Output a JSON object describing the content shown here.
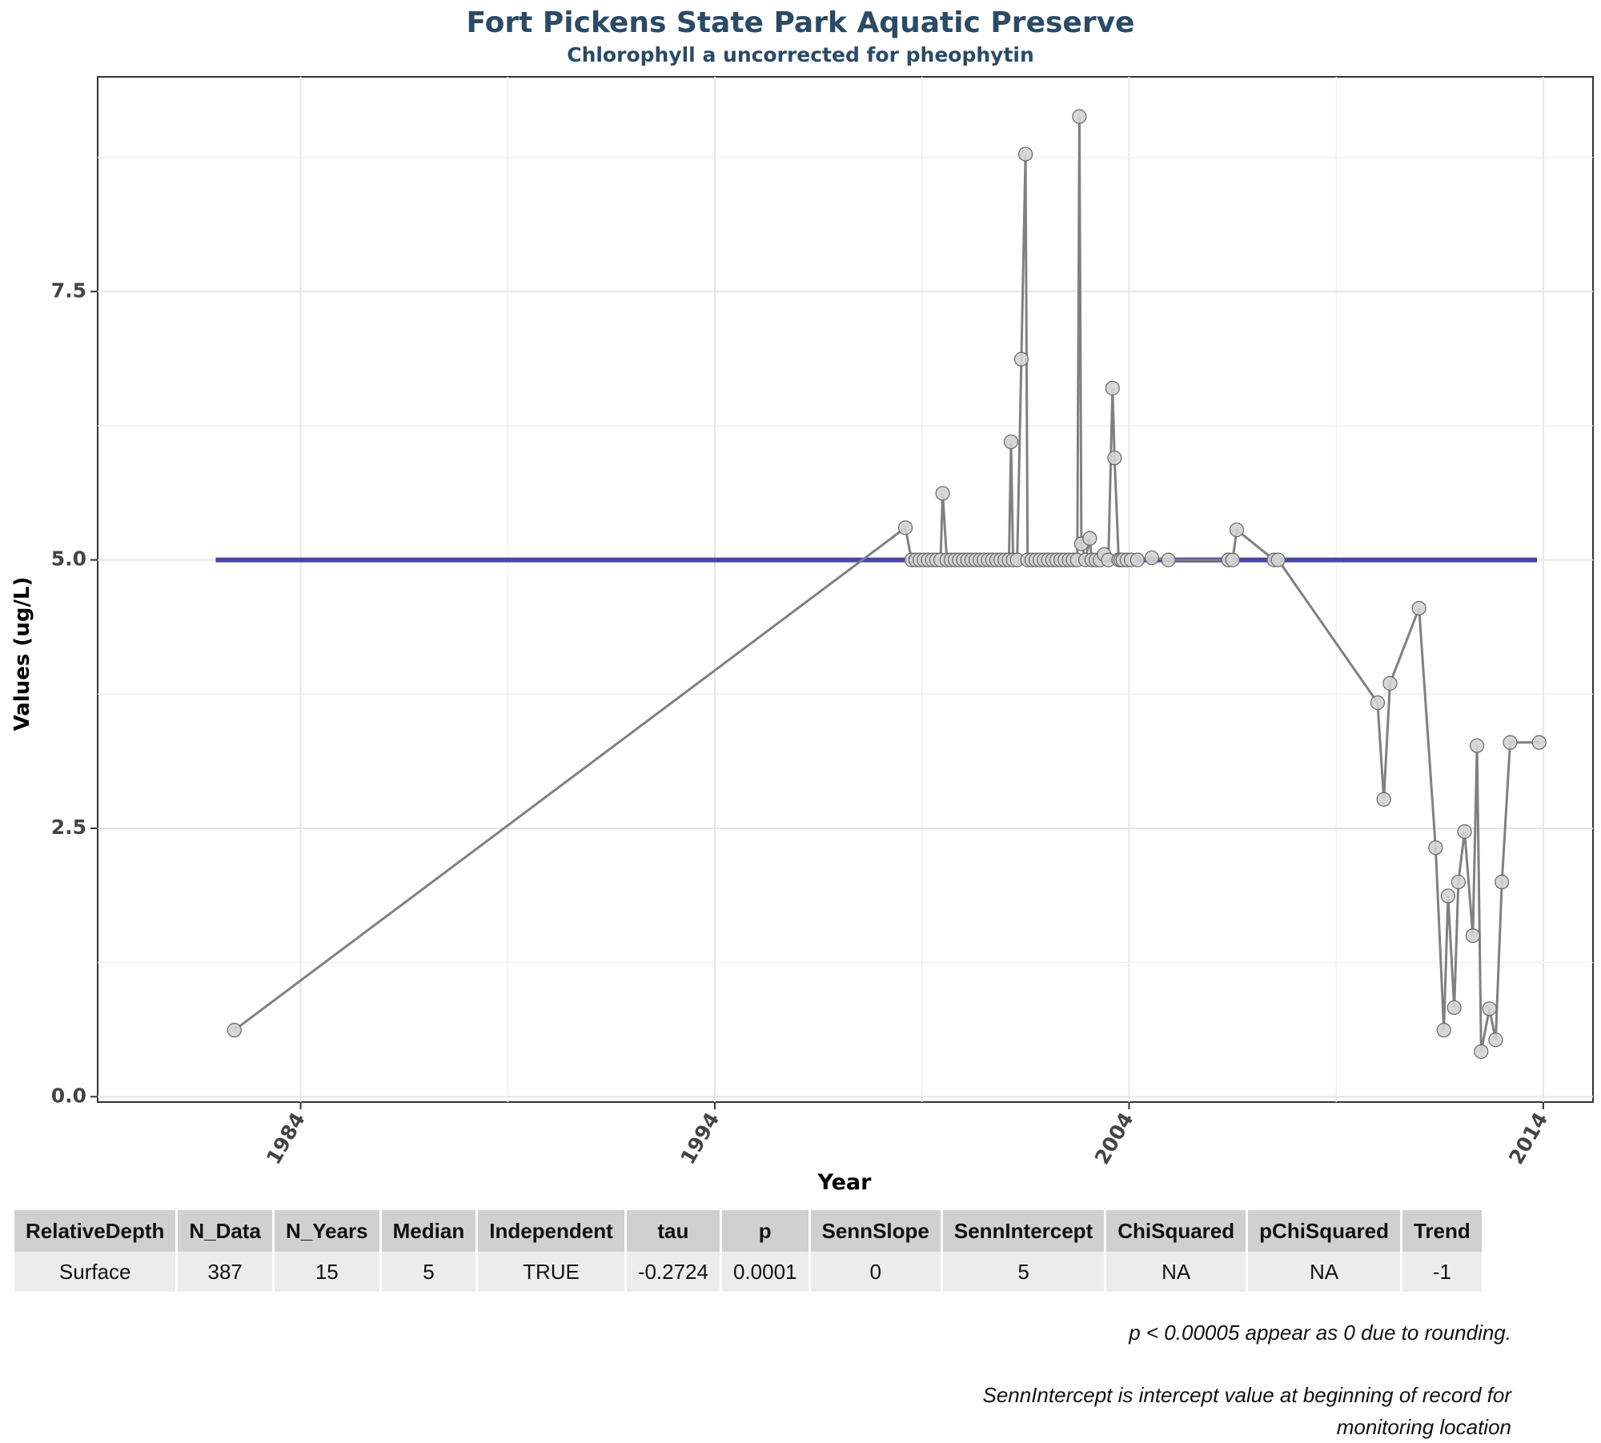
{
  "chart_data": {
    "type": "line",
    "title": "Fort Pickens State Park Aquatic Preserve",
    "subtitle": "Chlorophyll a uncorrected for pheophytin",
    "xlabel": "Year",
    "ylabel": "Values (ug/L)",
    "xlim": [
      1979.1,
      2015.2
    ],
    "ylim": [
      -0.05,
      9.5
    ],
    "x_ticks": [
      1984,
      1994,
      2004,
      2014
    ],
    "y_ticks": [
      0.0,
      2.5,
      5.0,
      7.5
    ],
    "y_tick_labels": [
      "0.0",
      "2.5",
      "5.0",
      "7.5"
    ],
    "grid": true,
    "series": [
      {
        "x": [
          1982.4,
          1998.6,
          1998.75,
          1998.85,
          1998.95,
          1999.05,
          1999.15,
          1999.25,
          1999.35,
          1999.45,
          1999.5,
          1999.6,
          1999.7,
          1999.8,
          1999.9,
          2000.0,
          2000.1,
          2000.2,
          2000.3,
          2000.4,
          2000.5,
          2000.6,
          2000.7,
          2000.8,
          2000.9,
          2001.0,
          2001.1,
          2001.15,
          2001.2,
          2001.3,
          2001.4,
          2001.5,
          2001.55,
          2001.65,
          2001.75,
          2001.85,
          2001.95,
          2002.05,
          2002.15,
          2002.25,
          2002.35,
          2002.45,
          2002.55,
          2002.65,
          2002.75,
          2002.8,
          2002.85,
          2002.95,
          2003.05,
          2003.1,
          2003.2,
          2003.3,
          2003.4,
          2003.5,
          2003.6,
          2003.65,
          2003.75,
          2003.8,
          2003.85,
          2003.95,
          2004.05,
          2004.2,
          2004.55,
          2004.95,
          2006.4,
          2006.5,
          2006.6,
          2007.5,
          2007.6,
          2010.0,
          2010.15,
          2010.3,
          2011.0,
          2011.4,
          2011.6,
          2011.7,
          2011.85,
          2011.95,
          2012.1,
          2012.3,
          2012.4,
          2012.5,
          2012.7,
          2012.85,
          2013.0,
          2013.2,
          2013.9
        ],
        "y": [
          0.62,
          5.3,
          5.0,
          5.0,
          5.0,
          5.0,
          5.0,
          5.0,
          5.0,
          5.0,
          5.62,
          5.0,
          5.0,
          5.0,
          5.0,
          5.0,
          5.0,
          5.0,
          5.0,
          5.0,
          5.0,
          5.0,
          5.0,
          5.0,
          5.0,
          5.0,
          5.0,
          6.1,
          5.0,
          5.0,
          6.87,
          8.78,
          5.0,
          5.0,
          5.0,
          5.0,
          5.0,
          5.0,
          5.0,
          5.0,
          5.0,
          5.0,
          5.0,
          5.0,
          5.0,
          9.13,
          5.15,
          5.0,
          5.2,
          5.0,
          5.0,
          5.0,
          5.05,
          5.0,
          6.6,
          5.95,
          5.0,
          5.0,
          5.0,
          5.0,
          5.0,
          5.0,
          5.02,
          5.0,
          5.0,
          5.0,
          5.28,
          5.0,
          5.0,
          3.67,
          2.77,
          3.85,
          4.55,
          2.32,
          0.62,
          1.87,
          0.83,
          2.0,
          2.47,
          1.5,
          3.27,
          0.42,
          0.82,
          0.53,
          2.0,
          3.3,
          3.3
        ]
      }
    ],
    "trend_line": {
      "x": [
        1981.95,
        2013.85
      ],
      "y": [
        5.0,
        5.0
      ],
      "color": "#3e3e9e"
    },
    "point_fill": "#d3d3d3",
    "line_color": "#808080"
  },
  "table": {
    "headers": [
      "RelativeDepth",
      "N_Data",
      "N_Years",
      "Median",
      "Independent",
      "tau",
      "p",
      "SennSlope",
      "SennIntercept",
      "ChiSquared",
      "pChiSquared",
      "Trend"
    ],
    "row": [
      "Surface",
      "387",
      "15",
      "5",
      "TRUE",
      "-0.2724",
      "0.0001",
      "0",
      "5",
      "NA",
      "NA",
      "-1"
    ]
  },
  "notes": {
    "p_note": "p < 0.00005 appear as 0 due to rounding.",
    "senn_note": "SennIntercept is intercept value at beginning of record for monitoring location"
  }
}
